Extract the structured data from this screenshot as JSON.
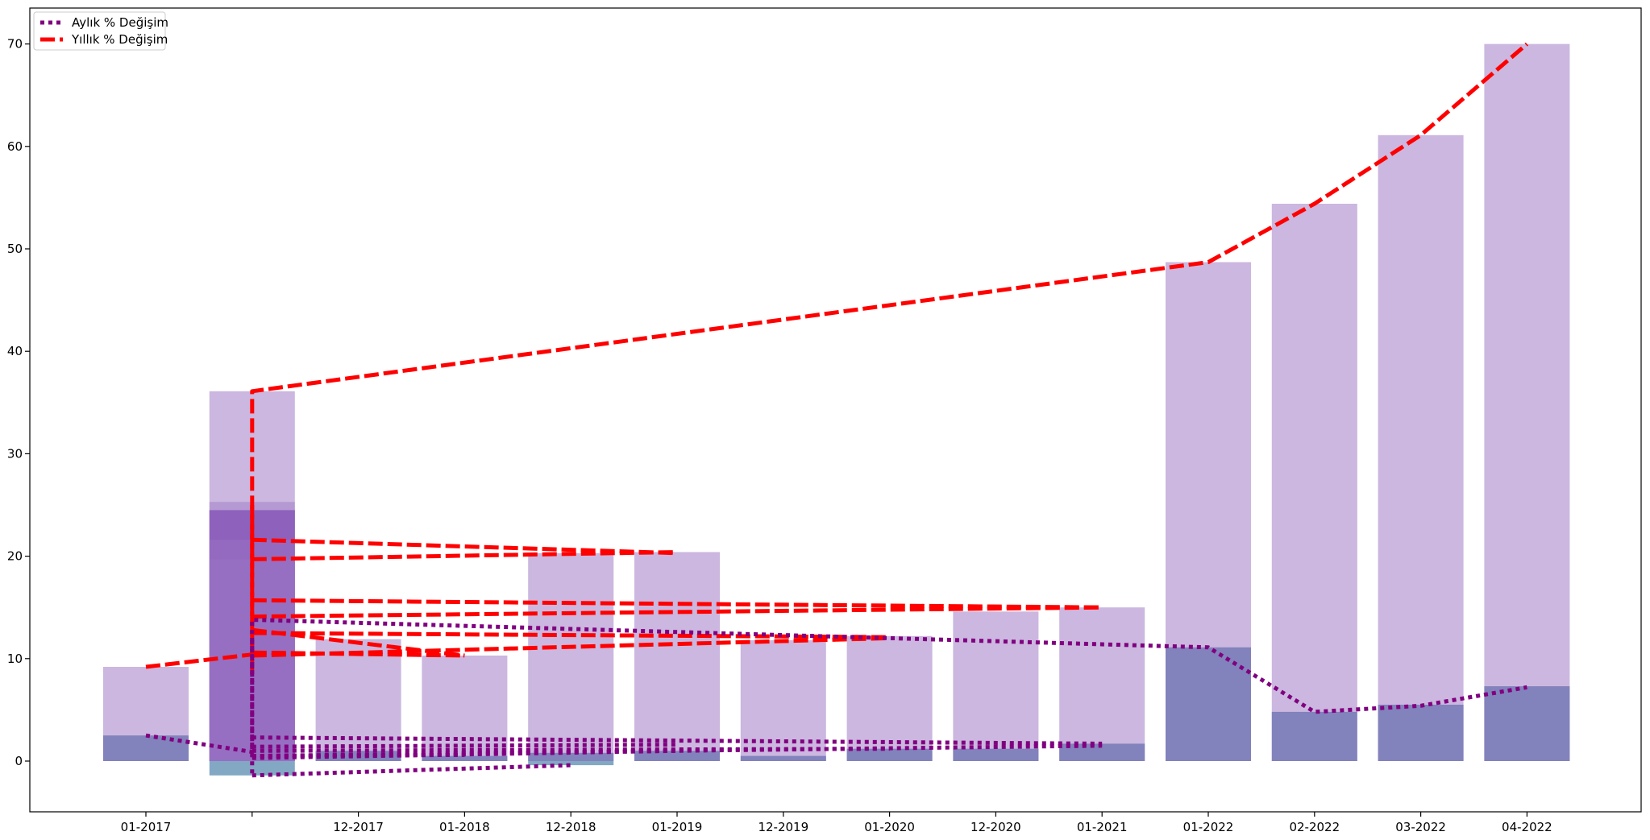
{
  "chart_data": {
    "type": "bar",
    "categories": [
      "01-2017",
      "",
      "12-2017",
      "01-2018",
      "12-2018",
      "01-2019",
      "12-2019",
      "01-2020",
      "12-2020",
      "01-2021",
      "01-2022",
      "02-2022",
      "03-2022",
      "04-2022"
    ],
    "ylim": [
      -5,
      72
    ],
    "yticks": [
      0,
      10,
      20,
      30,
      40,
      50,
      60,
      70
    ],
    "xlabel": "",
    "ylabel": "",
    "title": "",
    "grid": false,
    "legend_position": "top-left",
    "legend": [
      {
        "label": "Aylık % Değişim",
        "style": "dotted",
        "color": "#800080"
      },
      {
        "label": "Yıllık % Değişim",
        "style": "dashed",
        "color": "#ff0000"
      }
    ],
    "yearly_bars": [
      9.2,
      36.1,
      11.9,
      10.3,
      20.3,
      20.4,
      11.8,
      12.2,
      14.6,
      15.0,
      48.7,
      54.4,
      61.1,
      70.0
    ],
    "monthly_bars": [
      2.5,
      24.5,
      1.0,
      0.5,
      0.8,
      1.0,
      0.5,
      1.2,
      1.2,
      1.7,
      11.1,
      4.8,
      5.5,
      7.3
    ],
    "extra_bars_at_index_1": [
      25.3,
      21.6,
      19.7,
      -1.4
    ],
    "extra_bars_at_index_4": [
      -0.4
    ],
    "yearly_lines": [
      {
        "x": [
          0,
          1,
          1,
          10,
          11,
          12,
          13
        ],
        "y": [
          9.2,
          10.4,
          36.1,
          48.7,
          54.4,
          61.1,
          70.0
        ]
      },
      {
        "x": [
          1,
          5
        ],
        "y": [
          21.6,
          20.3
        ]
      },
      {
        "x": [
          1,
          5
        ],
        "y": [
          19.7,
          20.4
        ]
      },
      {
        "x": [
          1,
          9
        ],
        "y": [
          15.7,
          15.0
        ]
      },
      {
        "x": [
          1,
          9
        ],
        "y": [
          14.1,
          15.0
        ]
      },
      {
        "x": [
          1,
          7
        ],
        "y": [
          12.5,
          12.1
        ]
      },
      {
        "x": [
          1,
          7
        ],
        "y": [
          10.3,
          12.0
        ]
      },
      {
        "x": [
          1,
          3
        ],
        "y": [
          12.8,
          10.3
        ]
      },
      {
        "x": [
          1,
          3
        ],
        "y": [
          10.6,
          10.3
        ]
      },
      {
        "x": [
          1,
          1
        ],
        "y": [
          8.5,
          25.0
        ]
      }
    ],
    "monthly_lines": [
      {
        "x": [
          0,
          1,
          1,
          10,
          11,
          12,
          13
        ],
        "y": [
          2.5,
          0.9,
          13.8,
          11.1,
          4.8,
          5.4,
          7.2
        ]
      },
      {
        "x": [
          1,
          1
        ],
        "y": [
          -1.2,
          12.0
        ]
      },
      {
        "x": [
          1,
          4
        ],
        "y": [
          -1.4,
          -0.4
        ]
      },
      {
        "x": [
          1,
          5
        ],
        "y": [
          0.3,
          1.0
        ]
      },
      {
        "x": [
          1,
          9
        ],
        "y": [
          2.3,
          1.7
        ]
      },
      {
        "x": [
          1,
          7
        ],
        "y": [
          1.0,
          1.2
        ]
      },
      {
        "x": [
          1,
          9
        ],
        "y": [
          0.5,
          1.5
        ]
      },
      {
        "x": [
          1,
          3
        ],
        "y": [
          0.5,
          0.6
        ]
      },
      {
        "x": [
          1,
          5
        ],
        "y": [
          1.4,
          1.6
        ]
      }
    ],
    "colors": {
      "yearly_bar": "#cbb7df",
      "monthly_bar": "#8282bc",
      "overlap_bar": "#8250b4",
      "overlap_band": "#9b75c6",
      "negative_bar": "#82a8c4",
      "yearly_line": "#ff0000",
      "monthly_line": "#800080"
    }
  }
}
